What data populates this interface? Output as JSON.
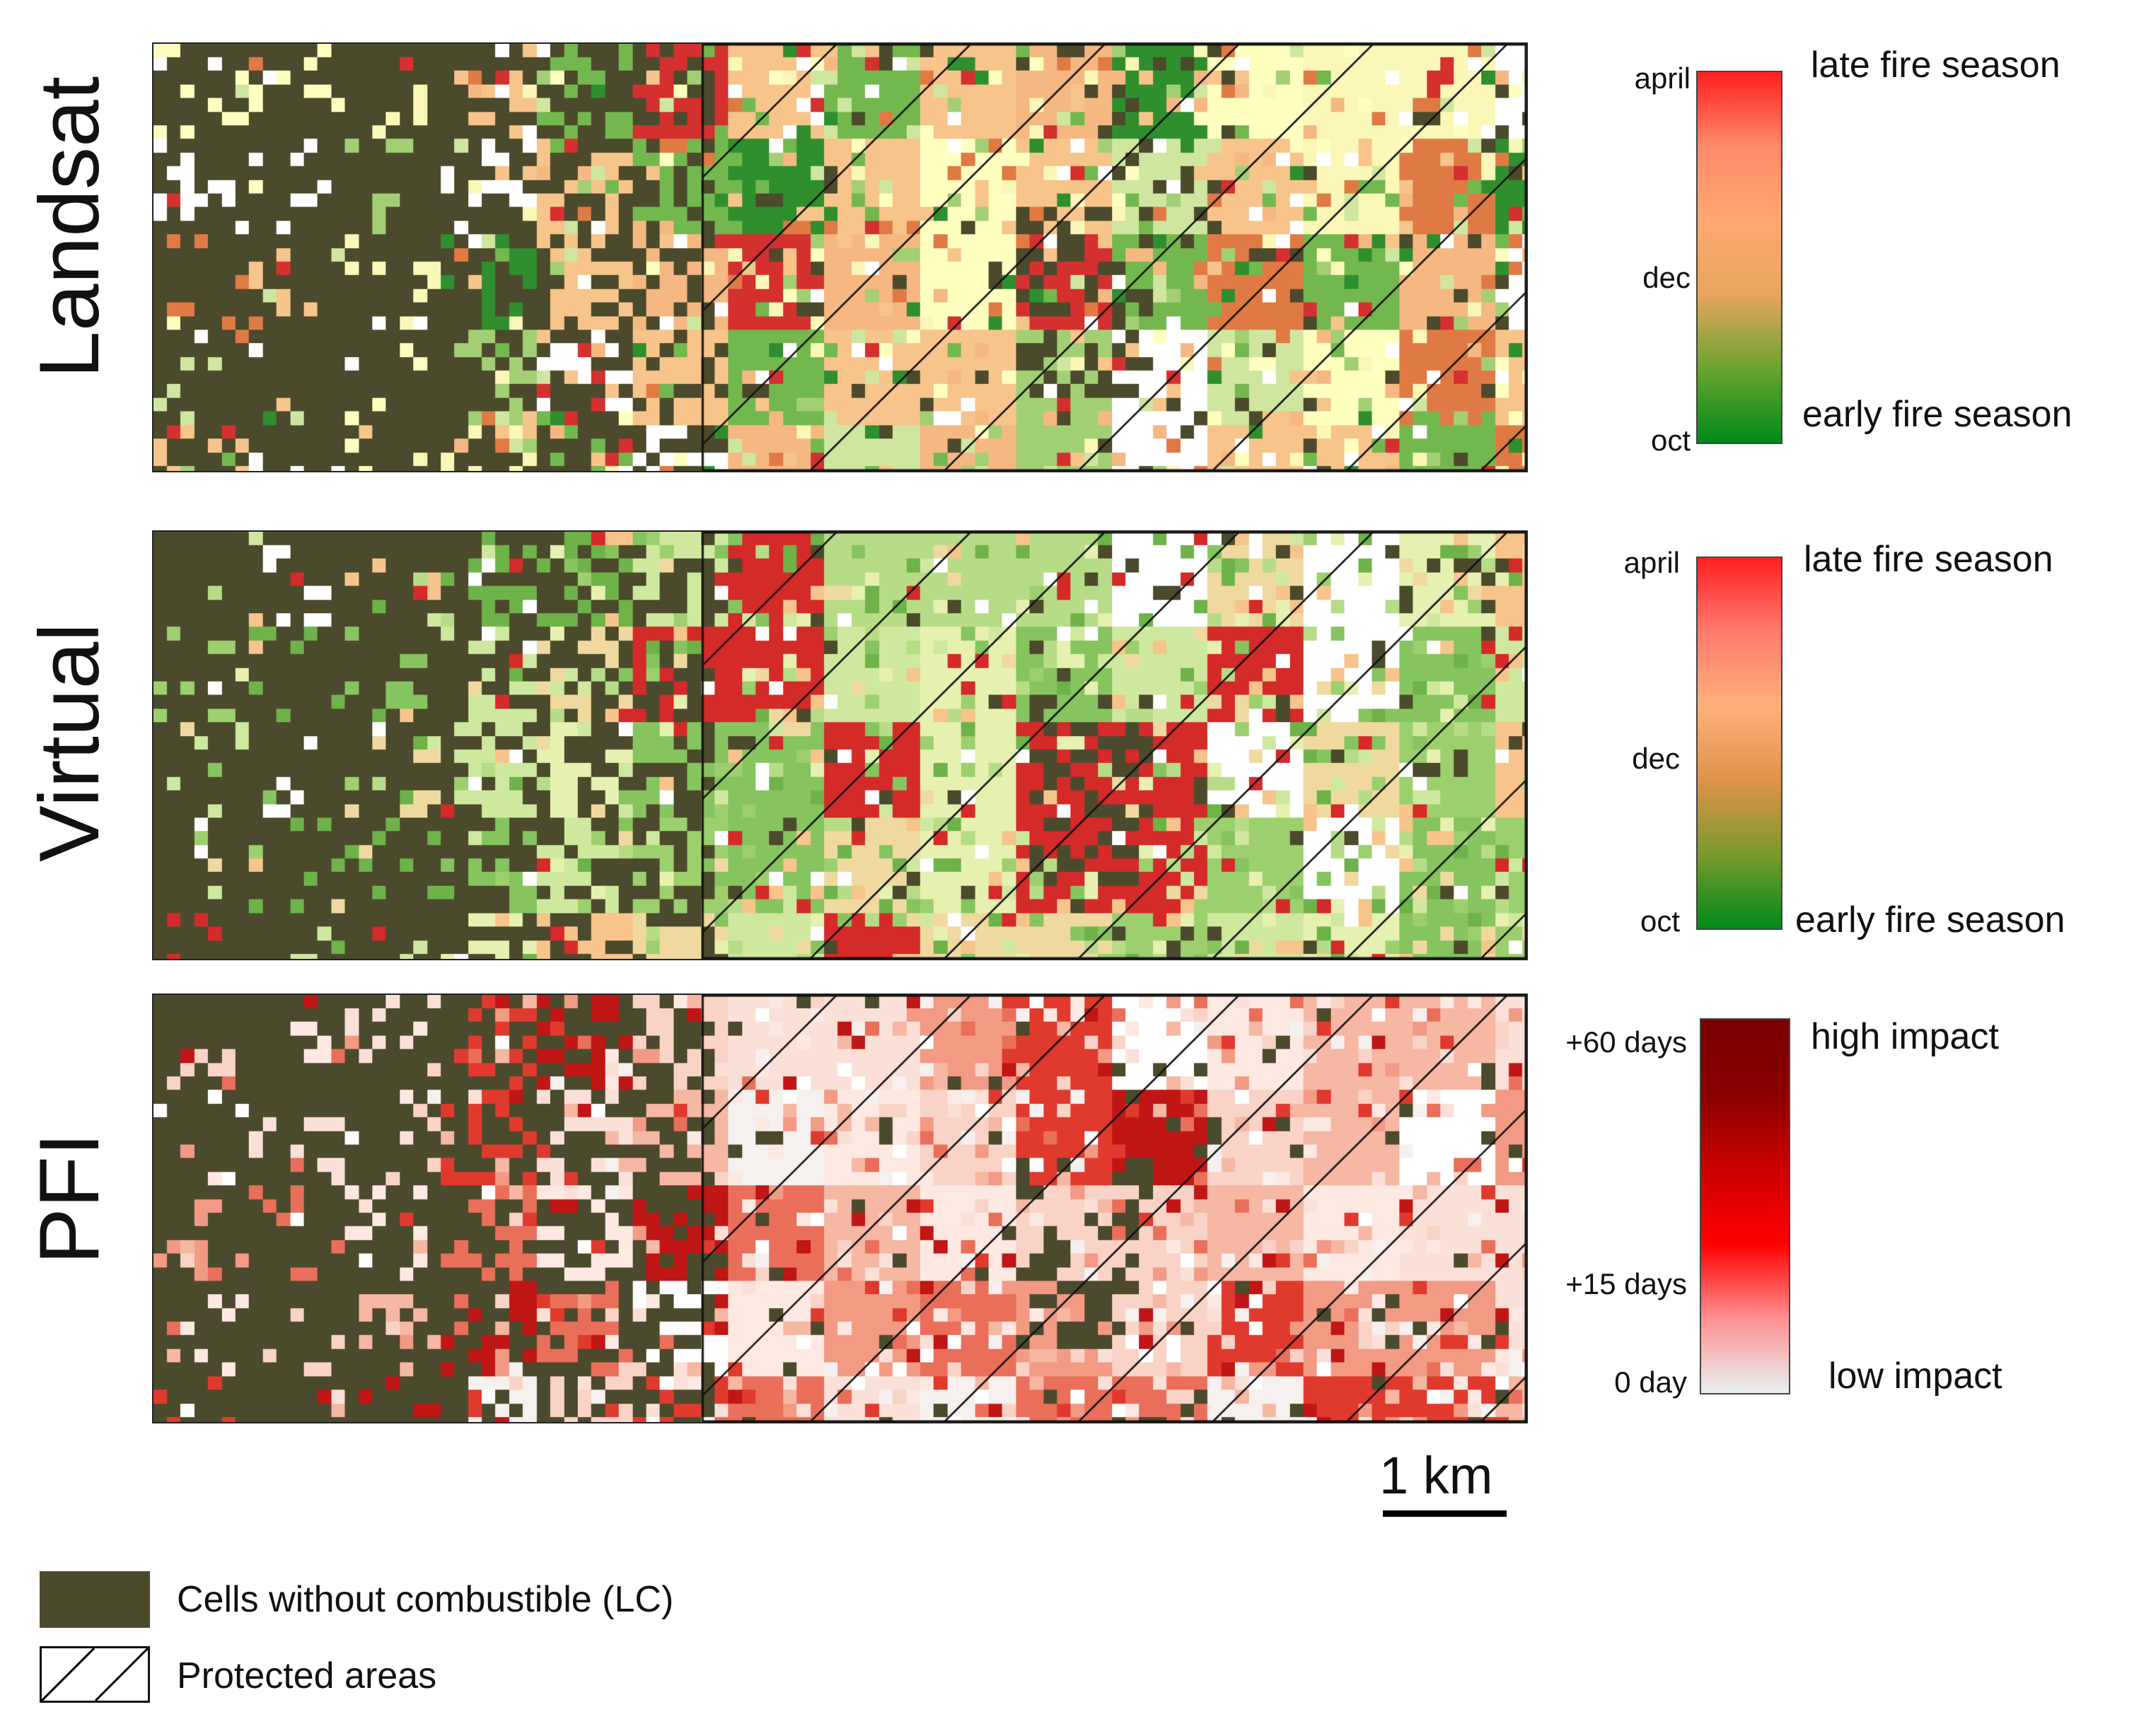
{
  "panels": [
    {
      "key": "landsat",
      "label": "Landsat"
    },
    {
      "key": "virtual",
      "label": "Virtual"
    },
    {
      "key": "pfi",
      "label": "PFI"
    }
  ],
  "legends": [
    {
      "ticks": {
        "top": "april",
        "mid": "dec",
        "bottom": "oct"
      },
      "captions": {
        "top": "late fire season",
        "bottom": "early fire season"
      },
      "colors": [
        "#ff1f1f",
        "#ff8a6a",
        "#ffa870",
        "#e8a55e",
        "#6aa42e",
        "#008a1a"
      ]
    },
    {
      "ticks": {
        "top": "april",
        "mid": "dec",
        "bottom": "oct"
      },
      "captions": {
        "top": "late fire season",
        "bottom": "early fire season"
      },
      "colors": [
        "#ff2020",
        "#ff7b70",
        "#ffb07a",
        "#e0924a",
        "#7a9a2c",
        "#008a1a"
      ]
    },
    {
      "ticks": {
        "top": "+60 days",
        "mid": "+15 days",
        "bottom": "0 day"
      },
      "captions": {
        "top": "high impact",
        "bottom": "low impact"
      },
      "colors": [
        "#7a0000",
        "#8a0000",
        "#cc0000",
        "#ff0000",
        "#ff9090",
        "#e8f0f0"
      ]
    }
  ],
  "scale_bar": {
    "label": "1 km"
  },
  "bottom_legend": {
    "no_fuel_label": "Cells without combustible (LC)",
    "protected_label": "Protected areas",
    "no_fuel_color": "#4c4a2c"
  }
}
